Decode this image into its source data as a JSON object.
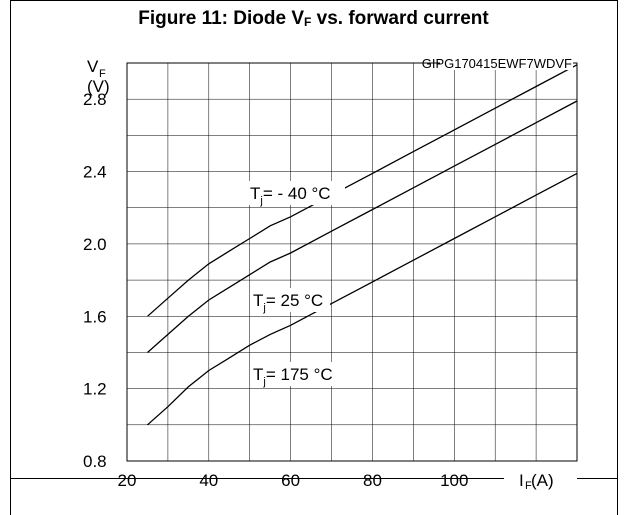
{
  "figure": {
    "title_main": "Figure 11: Diode V",
    "title_sub": "F",
    "title_rest": " vs. forward current",
    "code": "GIPG170415EWF7WDVF"
  },
  "chart_data": {
    "type": "line",
    "title": "Figure 11: Diode VF vs. forward current",
    "ylabel": {
      "symbol": "V",
      "sub": "F",
      "unit": "(V)"
    },
    "xlabel": {
      "symbol": "I",
      "sub": "F",
      "unit": "(A)"
    },
    "xlim": [
      20,
      130
    ],
    "ylim": [
      0.8,
      3.0
    ],
    "x_ticks": [
      20,
      40,
      60,
      80,
      100
    ],
    "y_ticks": [
      "0.8",
      "1.2",
      "1.6",
      "2.0",
      "2.4",
      "2.8"
    ],
    "grid": true,
    "series": [
      {
        "name": "Tj= - 40 °C",
        "label_prefix": "T",
        "label_sub": "j",
        "label_rest": "= - 40 °C",
        "x": [
          25,
          30,
          35,
          40,
          45,
          50,
          55,
          60,
          70,
          80,
          90,
          100,
          110,
          120,
          130
        ],
        "y": [
          1.6,
          1.7,
          1.8,
          1.89,
          1.96,
          2.03,
          2.1,
          2.15,
          2.27,
          2.39,
          2.51,
          2.63,
          2.75,
          2.87,
          2.99
        ]
      },
      {
        "name": "Tj= 25 °C",
        "label_prefix": "T",
        "label_sub": "j",
        "label_rest": "= 25 °C",
        "x": [
          25,
          30,
          35,
          40,
          45,
          50,
          55,
          60,
          70,
          80,
          90,
          100,
          110,
          120,
          130
        ],
        "y": [
          1.4,
          1.5,
          1.6,
          1.69,
          1.76,
          1.83,
          1.9,
          1.95,
          2.07,
          2.19,
          2.31,
          2.43,
          2.55,
          2.67,
          2.79
        ]
      },
      {
        "name": "Tj= 175 °C",
        "label_prefix": "T",
        "label_sub": "j",
        "label_rest": "= 175 °C",
        "x": [
          25,
          30,
          35,
          40,
          45,
          50,
          55,
          60,
          70,
          80,
          90,
          100,
          110,
          120,
          130
        ],
        "y": [
          1.0,
          1.1,
          1.21,
          1.3,
          1.37,
          1.44,
          1.5,
          1.55,
          1.67,
          1.79,
          1.91,
          2.03,
          2.15,
          2.27,
          2.39
        ]
      }
    ]
  }
}
